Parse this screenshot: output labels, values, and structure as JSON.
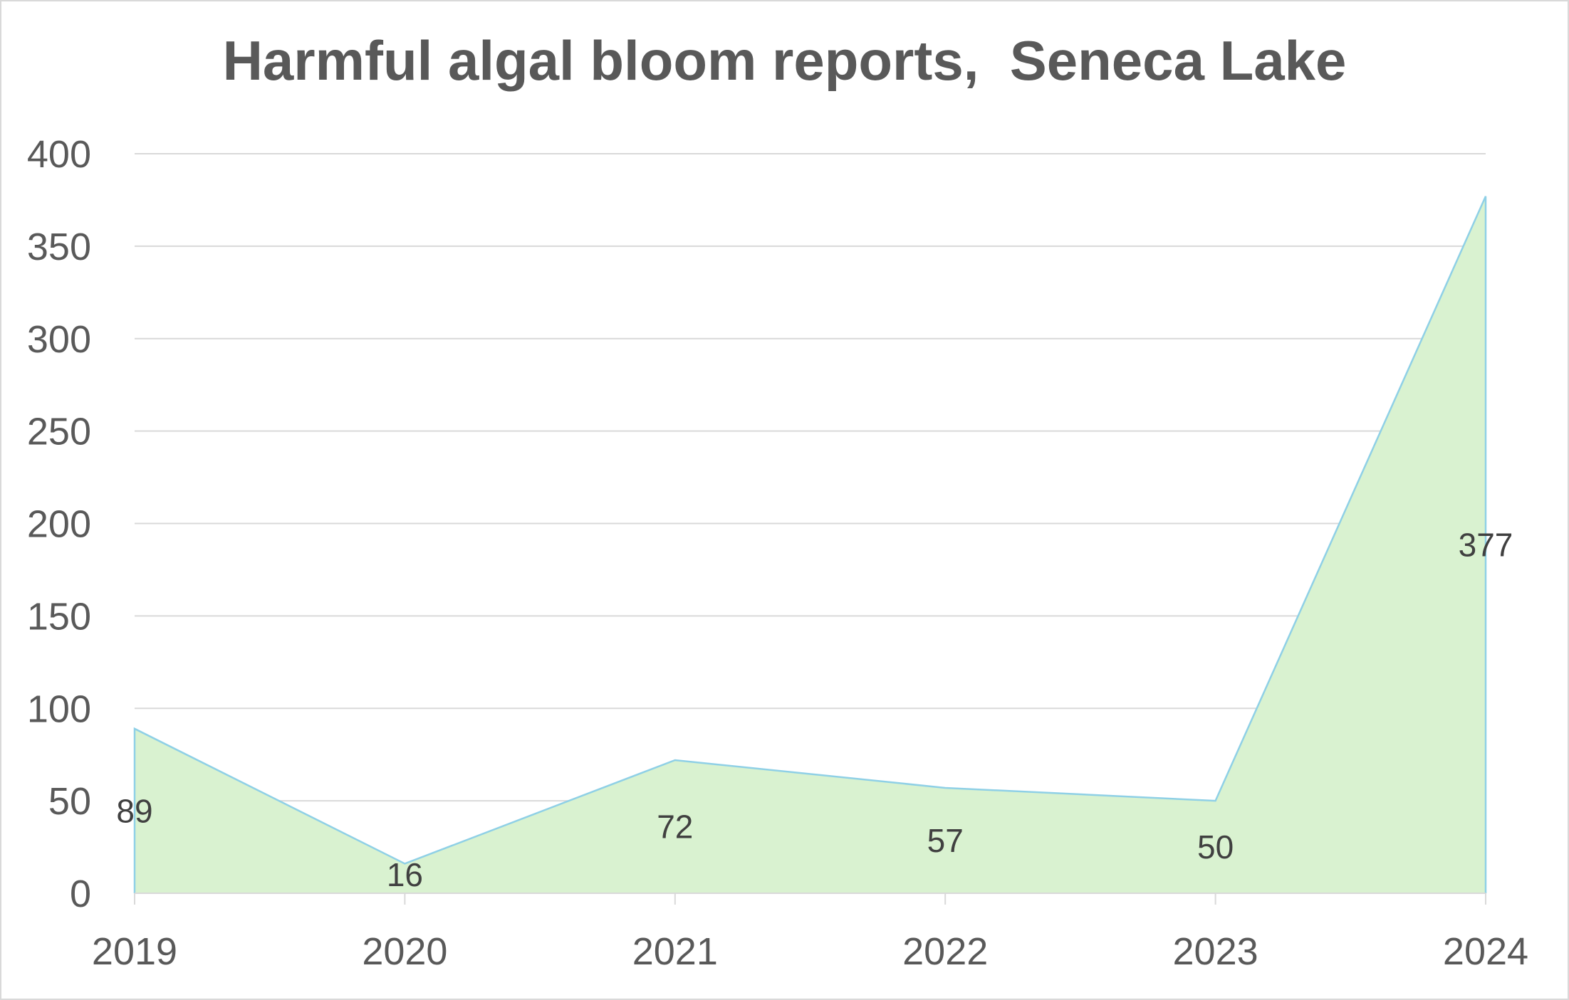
{
  "chart_data": {
    "type": "area",
    "title": "Harmful algal bloom reports,  Seneca Lake",
    "xlabel": "",
    "ylabel": "",
    "categories": [
      "2019",
      "2020",
      "2021",
      "2022",
      "2023",
      "2024"
    ],
    "series": [
      {
        "values": [
          89,
          16,
          72,
          57,
          50,
          377
        ]
      }
    ],
    "data_labels": [
      "89",
      "16",
      "72",
      "57",
      "50",
      "377"
    ],
    "ylim": [
      0,
      400
    ],
    "y_ticks": [
      0,
      50,
      100,
      150,
      200,
      250,
      300,
      350,
      400
    ],
    "y_tick_labels": [
      "0",
      "50",
      "100",
      "150",
      "200",
      "250",
      "300",
      "350",
      "400"
    ],
    "grid": true,
    "legend": "none",
    "colors": {
      "fill": "#d9f2d0",
      "line": "#8fd0e6",
      "grid": "#d9d9d9",
      "axis_text": "#595959",
      "data_label_text": "#404040"
    }
  }
}
